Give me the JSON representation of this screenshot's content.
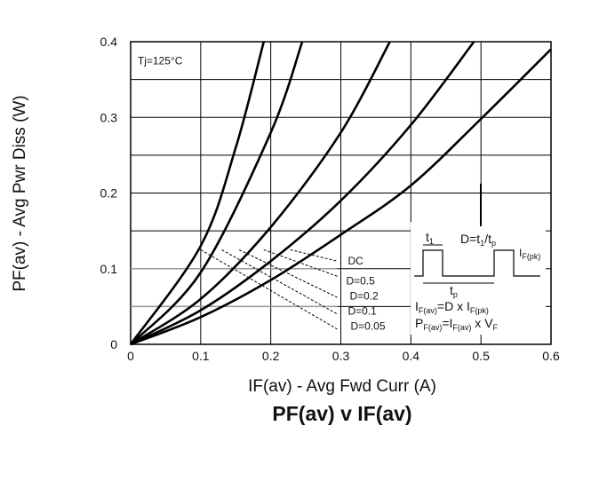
{
  "chart_data": {
    "type": "line",
    "title": "PF(av) v IF(av)",
    "xlabel": "IF(av) - Avg Fwd Curr (A)",
    "ylabel": "PF(av) - Avg Pwr Diss (W)",
    "xlim": [
      0,
      0.6
    ],
    "ylim": [
      0,
      0.4
    ],
    "xticks": [
      0,
      0.1,
      0.2,
      0.3,
      0.4,
      0.5,
      0.6
    ],
    "xtick_labels": [
      "0",
      "0.1",
      "0.2",
      "0.3",
      "0.4",
      "0.5",
      "0.6"
    ],
    "yticks": [
      0,
      0.1,
      0.2,
      0.3,
      0.4
    ],
    "ytick_labels": [
      "0",
      "0.1",
      "0.2",
      "0.3",
      "0.4"
    ],
    "grid": true,
    "condition": "Tj=125°C",
    "series": [
      {
        "name": "DC",
        "x": [
          0,
          0.1,
          0.2,
          0.3,
          0.4,
          0.5,
          0.6
        ],
        "y": [
          0,
          0.036,
          0.085,
          0.145,
          0.21,
          0.298,
          0.39
        ]
      },
      {
        "name": "D=0.5",
        "x": [
          0,
          0.1,
          0.2,
          0.3,
          0.4,
          0.49
        ],
        "y": [
          0,
          0.045,
          0.11,
          0.19,
          0.29,
          0.4
        ]
      },
      {
        "name": "D=0.2",
        "x": [
          0,
          0.1,
          0.2,
          0.3,
          0.37
        ],
        "y": [
          0,
          0.06,
          0.155,
          0.28,
          0.4
        ]
      },
      {
        "name": "D=0.1",
        "x": [
          0,
          0.1,
          0.2,
          0.245
        ],
        "y": [
          0,
          0.095,
          0.28,
          0.4
        ]
      },
      {
        "name": "D=0.05",
        "x": [
          0,
          0.1,
          0.15,
          0.19
        ],
        "y": [
          0,
          0.13,
          0.26,
          0.4
        ]
      }
    ],
    "annotations": {
      "labels": [
        "DC",
        "D=0.5",
        "D=0.2",
        "D=0.1",
        "D=0.05"
      ],
      "waveform": {
        "t1": "t",
        "t1_sub": "1",
        "tp": "t",
        "tp_sub": "p",
        "duty_prefix": "D=t",
        "duty_sub1": "1",
        "duty_mid": "/t",
        "duty_sub2": "p",
        "ipk": "I",
        "ipk_sub": "F(pk)",
        "eq1_a": "I",
        "eq1_a_sub": "F(av)",
        "eq1_b": "=D x I",
        "eq1_b_sub": "F(pk)",
        "eq2_a": "P",
        "eq2_a_sub": "F(av)",
        "eq2_b": "=I",
        "eq2_b_sub": "F(av)",
        "eq2_c": " x V",
        "eq2_c_sub": "F"
      }
    }
  }
}
